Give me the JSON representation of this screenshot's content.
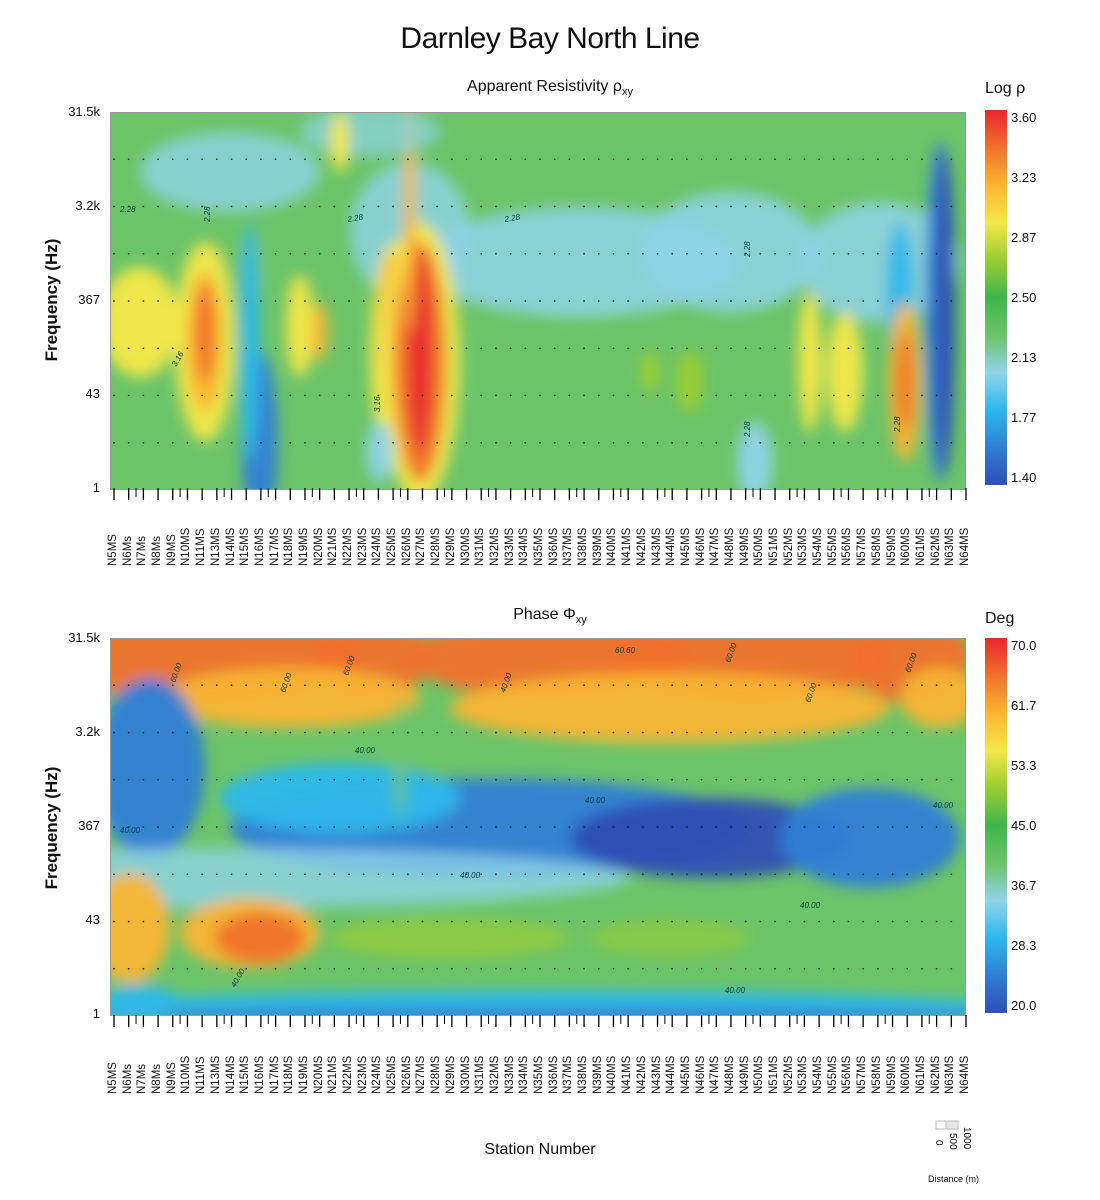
{
  "title": "Darnley Bay North Line",
  "colors": {
    "ramp": [
      "#2f4fb4",
      "#2f7fd6",
      "#2db8ea",
      "#8fd3e8",
      "#6cc468",
      "#3fb54a",
      "#9acd32",
      "#f4e84a",
      "#f9b531",
      "#f1712b",
      "#e8262d"
    ]
  },
  "chart_data": [
    {
      "type": "heatmap",
      "name": "apparent-resistivity",
      "title": "Apparent Resistivity ρ",
      "title_sub": "xy",
      "xlabel": "",
      "ylabel": "Frequency (Hz)",
      "y_ticks": [
        "31.5k",
        "3.2k",
        "367",
        "43",
        "1"
      ],
      "colorbar": {
        "title": "Log ρ",
        "ticks": [
          "3.60",
          "3.23",
          "2.87",
          "2.50",
          "2.13",
          "1.77",
          "1.40"
        ],
        "range": [
          1.4,
          3.6
        ]
      },
      "contour_labels": [
        "2.28",
        "3.16"
      ],
      "stations": [
        "N5MS",
        "N6Ms",
        "N7Ms",
        "N8Ms",
        "N9MS",
        "N10MS",
        "N11MS",
        "N13MS",
        "N14MS",
        "N15MS",
        "N16MS",
        "N17MS",
        "N18MS",
        "N19MS",
        "N20MS",
        "N21MS",
        "N22MS",
        "N23MS",
        "N24MS",
        "N25MS",
        "N26MS",
        "N27MS",
        "N28MS",
        "N29MS",
        "N30MS",
        "N31MS",
        "N32MS",
        "N33MS",
        "N34MS",
        "N35MS",
        "N36MS",
        "N37MS",
        "N38MS",
        "N39MS",
        "N40MS",
        "N41MS",
        "N42MS",
        "N43MS",
        "N44MS",
        "N45MS",
        "N46MS",
        "N47MS",
        "N48MS",
        "N49MS",
        "N50MS",
        "N51MS",
        "N52MS",
        "N53MS",
        "N54MS",
        "N55MS",
        "N56MS",
        "N57MS",
        "N58MS",
        "N59MS",
        "N60MS",
        "N61MS",
        "N62MS",
        "N63MS",
        "N64MS"
      ]
    },
    {
      "type": "heatmap",
      "name": "phase",
      "title": "Phase Φ",
      "title_sub": "xy",
      "xlabel": "Station Number",
      "ylabel": "Frequency (Hz)",
      "y_ticks": [
        "31.5k",
        "3.2k",
        "367",
        "43",
        "1"
      ],
      "colorbar": {
        "title": "Deg",
        "ticks": [
          "70.0",
          "61.7",
          "53.3",
          "45.0",
          "36.7",
          "28.3",
          "20.0"
        ],
        "range": [
          20.0,
          70.0
        ]
      },
      "contour_labels": [
        "60.00",
        "40.00"
      ],
      "stations": [
        "N5MS",
        "N6Ms",
        "N7Ms",
        "N8Ms",
        "N9MS",
        "N10MS",
        "N11MS",
        "N13MS",
        "N14MS",
        "N15MS",
        "N16MS",
        "N17MS",
        "N18MS",
        "N19MS",
        "N20MS",
        "N21MS",
        "N22MS",
        "N23MS",
        "N24MS",
        "N25MS",
        "N26MS",
        "N27MS",
        "N28MS",
        "N29MS",
        "N30MS",
        "N31MS",
        "N32MS",
        "N33MS",
        "N34MS",
        "N35MS",
        "N36MS",
        "N37MS",
        "N38MS",
        "N39MS",
        "N40MS",
        "N41MS",
        "N42MS",
        "N43MS",
        "N44MS",
        "N45MS",
        "N46MS",
        "N47MS",
        "N48MS",
        "N49MS",
        "N50MS",
        "N51MS",
        "N52MS",
        "N53MS",
        "N54MS",
        "N55MS",
        "N56MS",
        "N57MS",
        "N58MS",
        "N59MS",
        "N60MS",
        "N61MS",
        "N62MS",
        "N63MS",
        "N64MS"
      ]
    }
  ],
  "scale_bar": {
    "ticks": [
      "0",
      "500",
      "1000"
    ],
    "label": "Distance (m)"
  }
}
